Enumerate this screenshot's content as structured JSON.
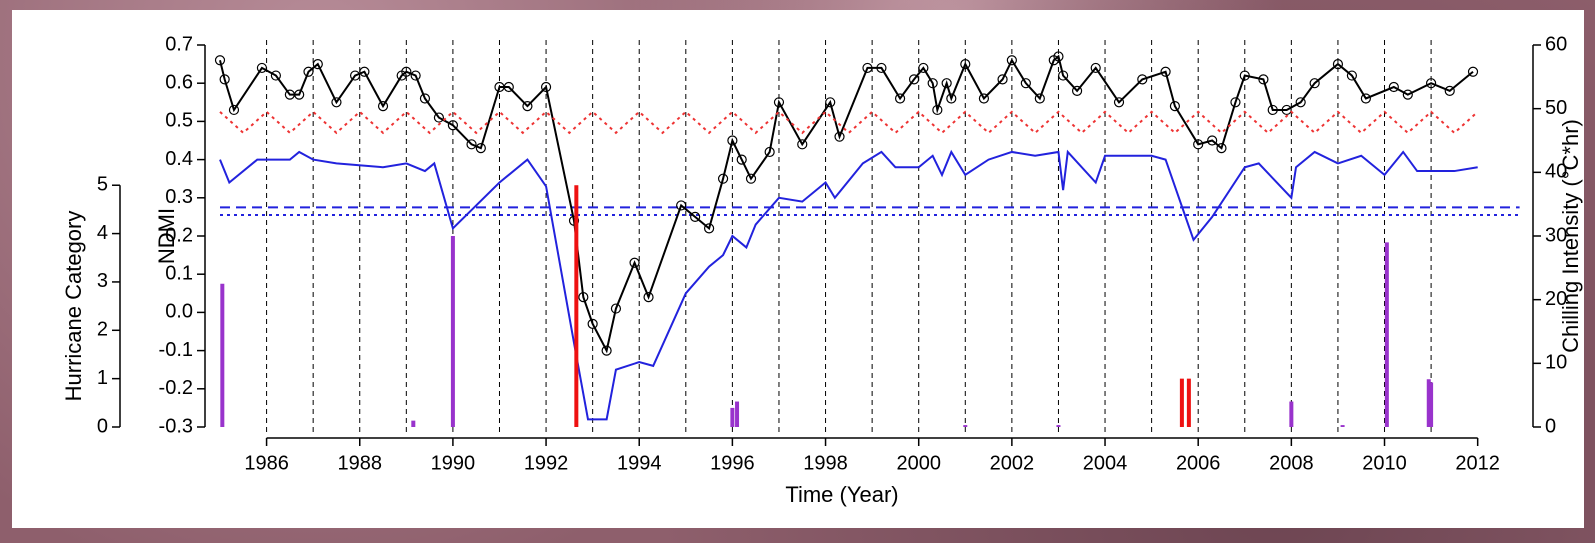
{
  "chart_data": {
    "type": "line",
    "xlabel": "Time (Year)",
    "ylabel": "NDMI",
    "y2label": "Chilling Intensity (°C*hr)",
    "y3label": "Hurricane Category",
    "xlim": [
      1985,
      2012.9
    ],
    "xticks": [
      1986,
      1988,
      1990,
      1992,
      1994,
      1996,
      1998,
      2000,
      2002,
      2004,
      2006,
      2008,
      2010,
      2012
    ],
    "xgrid": [
      1986,
      1987,
      1988,
      1989,
      1990,
      1991,
      1992,
      1993,
      1994,
      1995,
      1996,
      1997,
      1998,
      1999,
      2000,
      2001,
      2002,
      2003,
      2004,
      2005,
      2006,
      2007,
      2008,
      2009,
      2010,
      2011
    ],
    "ylim": [
      -0.3,
      0.7
    ],
    "yticks": [
      -0.3,
      -0.2,
      -0.1,
      {
        "value": 0,
        "label": "0.0"
      },
      0.1,
      0.2,
      0.3,
      0.4,
      0.5,
      0.6,
      0.7
    ],
    "y2lim": [
      0,
      60
    ],
    "y2ticks": [
      0,
      10,
      20,
      30,
      40,
      50,
      60
    ],
    "y3lim": [
      0,
      7.9
    ],
    "y3ticks": [
      0,
      1,
      2,
      3,
      4,
      5
    ],
    "hlines": [
      {
        "value": 0.275,
        "color": "#2222dd",
        "dash": "dashed"
      },
      {
        "value": 0.255,
        "color": "#2222dd",
        "dash": "dotted"
      }
    ],
    "series": [
      {
        "style": "line",
        "color": "#000000",
        "markers": true,
        "dash": "solid",
        "x": [
          1985.0,
          1985.1,
          1985.3,
          1985.9,
          1986.2,
          1986.5,
          1986.7,
          1986.9,
          1987.1,
          1987.5,
          1987.9,
          1988.1,
          1988.5,
          1988.9,
          1989.0,
          1989.2,
          1989.4,
          1989.7,
          1990.0,
          1990.4,
          1990.6,
          1991.0,
          1991.2,
          1991.6,
          1992.0,
          1992.6,
          1992.8,
          1993.0,
          1993.3,
          1993.5,
          1993.9,
          1994.2,
          1994.9,
          1995.2,
          1995.5,
          1995.8,
          1996.0,
          1996.2,
          1996.4,
          1996.8,
          1997.0,
          1997.5,
          1998.1,
          1998.3,
          1998.9,
          1999.2,
          1999.6,
          1999.9,
          2000.1,
          2000.3,
          2000.4,
          2000.6,
          2000.7,
          2001.0,
          2001.4,
          2001.8,
          2002.0,
          2002.3,
          2002.6,
          2002.9,
          2003.0,
          2003.1,
          2003.4,
          2003.8,
          2004.3,
          2004.8,
          2005.3,
          2005.5,
          2006.0,
          2006.3,
          2006.5,
          2006.8,
          2007.0,
          2007.4,
          2007.6,
          2007.9,
          2008.2,
          2008.5,
          2009.0,
          2009.3,
          2009.6,
          2010.2,
          2010.5,
          2011.0,
          2011.4,
          2011.9
        ],
        "values": [
          0.66,
          0.61,
          0.53,
          0.64,
          0.62,
          0.57,
          0.57,
          0.63,
          0.65,
          0.55,
          0.62,
          0.63,
          0.54,
          0.62,
          0.63,
          0.62,
          0.56,
          0.51,
          0.49,
          0.44,
          0.43,
          0.59,
          0.59,
          0.54,
          0.59,
          0.24,
          0.04,
          -0.03,
          -0.1,
          0.01,
          0.13,
          0.04,
          0.28,
          0.25,
          0.22,
          0.35,
          0.45,
          0.4,
          0.35,
          0.42,
          0.55,
          0.44,
          0.55,
          0.46,
          0.64,
          0.64,
          0.56,
          0.61,
          0.64,
          0.6,
          0.53,
          0.6,
          0.56,
          0.65,
          0.56,
          0.61,
          0.66,
          0.6,
          0.56,
          0.66,
          0.67,
          0.62,
          0.58,
          0.64,
          0.55,
          0.61,
          0.63,
          0.54,
          0.44,
          0.45,
          0.43,
          0.55,
          0.62,
          0.61,
          0.53,
          0.53,
          0.55,
          0.6,
          0.65,
          0.62,
          0.56,
          0.59,
          0.57,
          0.6,
          0.58,
          0.63
        ]
      },
      {
        "style": "line",
        "color": "#2222dd",
        "markers": false,
        "dash": "solid",
        "x": [
          1985.0,
          1985.2,
          1985.8,
          1986.5,
          1986.7,
          1987.0,
          1987.5,
          1988.5,
          1989.0,
          1989.4,
          1989.6,
          1990.0,
          1990.5,
          1991.0,
          1991.6,
          1992.0,
          1992.6,
          1992.9,
          1993.3,
          1993.5,
          1994.0,
          1994.3,
          1995.0,
          1995.5,
          1995.8,
          1996.0,
          1996.3,
          1996.5,
          1997.0,
          1997.5,
          1998.0,
          1998.2,
          1998.8,
          1999.2,
          1999.5,
          2000.0,
          2000.3,
          2000.5,
          2000.7,
          2001.0,
          2001.5,
          2002.0,
          2002.5,
          2003.0,
          2003.1,
          2003.2,
          2003.8,
          2004.0,
          2005.0,
          2005.3,
          2005.9,
          2006.3,
          2007.0,
          2007.3,
          2008.0,
          2008.1,
          2008.5,
          2009.0,
          2009.5,
          2010.0,
          2010.4,
          2010.7,
          2011.5,
          2012.0
        ],
        "values": [
          0.4,
          0.34,
          0.4,
          0.4,
          0.42,
          0.4,
          0.39,
          0.38,
          0.39,
          0.37,
          0.39,
          0.22,
          0.28,
          0.34,
          0.4,
          0.33,
          -0.08,
          -0.28,
          -0.28,
          -0.15,
          -0.13,
          -0.14,
          0.05,
          0.12,
          0.15,
          0.2,
          0.17,
          0.23,
          0.3,
          0.29,
          0.34,
          0.3,
          0.39,
          0.42,
          0.38,
          0.38,
          0.41,
          0.36,
          0.42,
          0.36,
          0.4,
          0.42,
          0.41,
          0.42,
          0.32,
          0.42,
          0.34,
          0.41,
          0.41,
          0.4,
          0.19,
          0.25,
          0.38,
          0.39,
          0.3,
          0.38,
          0.42,
          0.39,
          0.41,
          0.36,
          0.42,
          0.37,
          0.37,
          0.38
        ]
      },
      {
        "style": "line",
        "color": "#ee3333",
        "markers": false,
        "dash": "dotted",
        "x": [
          1985.0,
          1985.5,
          1986.0,
          1986.5,
          1987.0,
          1987.5,
          1988.0,
          1988.5,
          1989.0,
          1989.5,
          1990.0,
          1990.5,
          1991.0,
          1991.5,
          1992.0,
          1992.5,
          1993.0,
          1993.5,
          1994.0,
          1994.5,
          1995.0,
          1995.5,
          1996.0,
          1996.5,
          1997.0,
          1997.5,
          1998.0,
          1998.5,
          1999.0,
          1999.5,
          2000.0,
          2000.5,
          2001.0,
          2001.5,
          2002.0,
          2002.5,
          2003.0,
          2003.5,
          2004.0,
          2004.5,
          2005.0,
          2005.5,
          2006.0,
          2006.5,
          2007.0,
          2007.5,
          2008.0,
          2008.5,
          2009.0,
          2009.5,
          2010.0,
          2010.5,
          2011.0,
          2011.5,
          2012.0
        ],
        "values": [
          0.525,
          0.47,
          0.525,
          0.47,
          0.525,
          0.47,
          0.525,
          0.47,
          0.525,
          0.47,
          0.525,
          0.47,
          0.525,
          0.47,
          0.525,
          0.47,
          0.525,
          0.47,
          0.525,
          0.47,
          0.525,
          0.47,
          0.525,
          0.47,
          0.525,
          0.47,
          0.525,
          0.47,
          0.525,
          0.47,
          0.525,
          0.47,
          0.525,
          0.47,
          0.525,
          0.47,
          0.525,
          0.47,
          0.525,
          0.47,
          0.525,
          0.47,
          0.525,
          0.47,
          0.525,
          0.47,
          0.525,
          0.47,
          0.525,
          0.47,
          0.525,
          0.47,
          0.525,
          0.47,
          0.525
        ]
      },
      {
        "style": "bar",
        "axis": "y2",
        "color": "#9933cc",
        "x": [
          1985.05,
          1989.15,
          1990.0,
          1996.0,
          1996.1,
          2001.0,
          2003.0,
          2008.0,
          2009.1,
          2010.05,
          2010.95,
          2011.0
        ],
        "values": [
          22.5,
          1,
          30,
          3,
          4,
          0.3,
          0.3,
          4,
          0.3,
          29,
          7.5,
          7
        ]
      },
      {
        "style": "bar",
        "axis": "y3",
        "color": "#ee1111",
        "x": [
          1992.65,
          2005.65,
          2005.8
        ],
        "values": [
          5,
          1,
          1
        ]
      }
    ]
  }
}
